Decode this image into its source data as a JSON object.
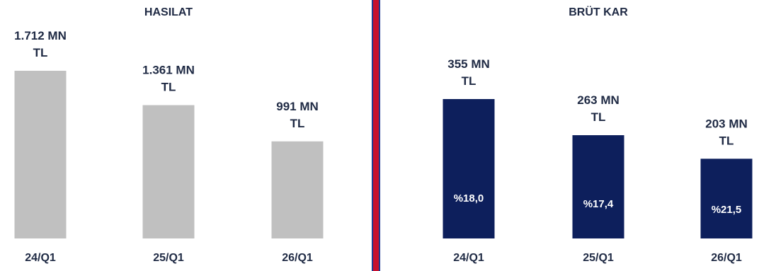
{
  "chart_data": [
    {
      "type": "bar",
      "title": "HASILAT",
      "categories": [
        "24/Q1",
        "25/Q1",
        "26/Q1"
      ],
      "values": [
        1712,
        1361,
        991
      ],
      "unit": "MN TL",
      "data_labels": [
        [
          "1.712 MN",
          "TL"
        ],
        [
          "1.361 MN",
          "TL"
        ],
        [
          "991 MN",
          "TL"
        ]
      ],
      "bar_color": "#c0c0c0"
    },
    {
      "type": "bar",
      "title": "BRÜT KAR",
      "categories": [
        "24/Q1",
        "25/Q1",
        "26/Q1"
      ],
      "values": [
        355,
        263,
        203
      ],
      "unit": "MN TL",
      "data_labels": [
        [
          "355 MN",
          "TL"
        ],
        [
          "263 MN",
          "TL"
        ],
        [
          "203 MN",
          "TL"
        ]
      ],
      "margins": [
        "%18,0",
        "%17,4",
        "%21,5"
      ],
      "bar_color": "#0d1f5c"
    }
  ],
  "divider_colors": [
    "#c8102e",
    "#1f3a93"
  ]
}
